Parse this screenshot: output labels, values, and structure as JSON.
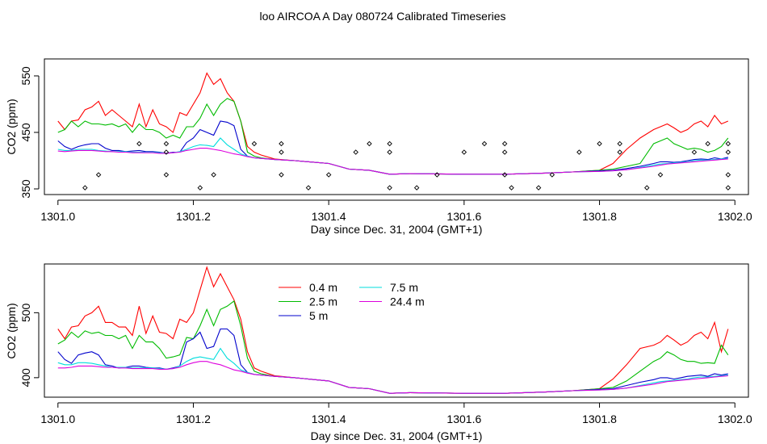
{
  "title": "loo AIRCOA A  Day 080724  Calibrated Timeseries",
  "chart_data": [
    {
      "type": "line",
      "xlabel": "Day since Dec. 31, 2004 (GMT+1)",
      "ylabel": "CO2 (ppm)",
      "xlim": [
        1300.98,
        1302.02
      ],
      "ylim": [
        340,
        580
      ],
      "xticks": [
        1301.0,
        1301.2,
        1301.4,
        1301.6,
        1301.8,
        1302.0
      ],
      "xtick_labels": [
        "1301.0",
        "1301.2",
        "1301.4",
        "1301.6",
        "1301.8",
        "1302.0"
      ],
      "yticks": [
        350,
        450,
        550
      ],
      "ytick_labels": [
        "350",
        "450",
        "550"
      ],
      "grid": false,
      "legend": "none",
      "x": [
        1301.0,
        1301.01,
        1301.02,
        1301.03,
        1301.04,
        1301.05,
        1301.06,
        1301.07,
        1301.08,
        1301.09,
        1301.1,
        1301.11,
        1301.12,
        1301.13,
        1301.14,
        1301.15,
        1301.16,
        1301.17,
        1301.18,
        1301.19,
        1301.2,
        1301.21,
        1301.22,
        1301.23,
        1301.24,
        1301.25,
        1301.26,
        1301.27,
        1301.28,
        1301.29,
        1301.3,
        1301.32,
        1301.35,
        1301.4,
        1301.43,
        1301.46,
        1301.49,
        1301.52,
        1301.6,
        1301.66,
        1301.72,
        1301.76,
        1301.8,
        1301.82,
        1301.84,
        1301.86,
        1301.88,
        1301.89,
        1301.9,
        1301.91,
        1301.92,
        1301.93,
        1301.94,
        1301.95,
        1301.96,
        1301.97,
        1301.98,
        1301.99
      ],
      "series": [
        {
          "name": "0.4 m",
          "color": "#ff0000",
          "values": [
            470,
            455,
            470,
            472,
            490,
            495,
            505,
            480,
            490,
            480,
            470,
            460,
            500,
            460,
            490,
            465,
            460,
            450,
            485,
            480,
            500,
            520,
            555,
            535,
            545,
            520,
            505,
            470,
            425,
            415,
            410,
            403,
            400,
            395,
            385,
            383,
            376,
            377,
            376,
            376,
            378,
            380,
            383,
            395,
            420,
            440,
            455,
            460,
            465,
            458,
            450,
            455,
            465,
            470,
            460,
            480,
            465,
            470
          ]
        },
        {
          "name": "2.5 m",
          "color": "#00bb00",
          "values": [
            450,
            455,
            470,
            460,
            470,
            465,
            465,
            463,
            465,
            460,
            465,
            450,
            465,
            455,
            455,
            450,
            440,
            445,
            440,
            460,
            460,
            475,
            500,
            480,
            500,
            510,
            505,
            470,
            415,
            408,
            405,
            402,
            400,
            395,
            385,
            383,
            376,
            377,
            376,
            376,
            378,
            380,
            383,
            385,
            390,
            395,
            430,
            435,
            440,
            430,
            425,
            420,
            422,
            420,
            415,
            418,
            425,
            440
          ]
        },
        {
          "name": "5 m",
          "color": "#0000cc",
          "values": [
            435,
            425,
            420,
            425,
            428,
            430,
            430,
            422,
            418,
            418,
            416,
            417,
            418,
            416,
            416,
            415,
            413,
            415,
            415,
            432,
            440,
            455,
            450,
            445,
            470,
            468,
            462,
            420,
            408,
            405,
            404,
            402,
            400,
            395,
            385,
            383,
            376,
            377,
            376,
            376,
            378,
            380,
            382,
            383,
            386,
            390,
            395,
            398,
            398,
            397,
            398,
            400,
            402,
            403,
            402,
            405,
            403,
            406
          ]
        },
        {
          "name": "7.5 m",
          "color": "#00dddd",
          "values": [
            420,
            418,
            418,
            420,
            420,
            420,
            418,
            417,
            416,
            416,
            416,
            415,
            415,
            415,
            415,
            414,
            413,
            414,
            416,
            420,
            425,
            428,
            427,
            425,
            440,
            428,
            420,
            412,
            408,
            405,
            404,
            402,
            400,
            395,
            385,
            383,
            376,
            377,
            376,
            376,
            378,
            380,
            381,
            382,
            384,
            388,
            392,
            394,
            395,
            396,
            397,
            398,
            400,
            401,
            401,
            402,
            403,
            404
          ]
        },
        {
          "name": "24.4 m",
          "color": "#dd00dd",
          "values": [
            417,
            416,
            417,
            418,
            418,
            418,
            417,
            416,
            416,
            415,
            415,
            414,
            414,
            414,
            414,
            413,
            413,
            414,
            415,
            418,
            420,
            422,
            422,
            420,
            418,
            415,
            412,
            410,
            407,
            405,
            404,
            402,
            400,
            395,
            385,
            383,
            376,
            377,
            376,
            376,
            378,
            380,
            381,
            382,
            384,
            387,
            390,
            392,
            394,
            395,
            396,
            397,
            398,
            399,
            400,
            401,
            402,
            403
          ]
        }
      ],
      "markers": {
        "symbol": "diamond",
        "x": [
          1301.04,
          1301.06,
          1301.12,
          1301.16,
          1301.16,
          1301.16,
          1301.21,
          1301.23,
          1301.29,
          1301.33,
          1301.33,
          1301.33,
          1301.37,
          1301.4,
          1301.44,
          1301.46,
          1301.49,
          1301.49,
          1301.49,
          1301.53,
          1301.56,
          1301.6,
          1301.63,
          1301.66,
          1301.66,
          1301.66,
          1301.67,
          1301.71,
          1301.73,
          1301.77,
          1301.8,
          1301.83,
          1301.83,
          1301.83,
          1301.87,
          1301.89,
          1301.94,
          1301.96,
          1301.99,
          1301.99,
          1301.99,
          1301.99
        ],
        "y": [
          352,
          375,
          430,
          375,
          415,
          430,
          352,
          375,
          430,
          375,
          415,
          430,
          352,
          375,
          415,
          430,
          352,
          415,
          430,
          352,
          375,
          415,
          430,
          375,
          415,
          430,
          352,
          352,
          375,
          415,
          430,
          375,
          415,
          430,
          352,
          375,
          415,
          430,
          375,
          352,
          415,
          430
        ]
      }
    },
    {
      "type": "line",
      "xlabel": "Day since Dec. 31, 2004 (GMT+1)",
      "ylabel": "CO2 (ppm)",
      "xlim": [
        1300.98,
        1302.02
      ],
      "ylim": [
        370,
        575
      ],
      "xticks": [
        1301.0,
        1301.2,
        1301.4,
        1301.6,
        1301.8,
        1302.0
      ],
      "xtick_labels": [
        "1301.0",
        "1301.2",
        "1301.4",
        "1301.6",
        "1301.8",
        "1302.0"
      ],
      "yticks": [
        400,
        500
      ],
      "ytick_labels": [
        "400",
        "500"
      ],
      "grid": false,
      "legend": "top-center",
      "legend_entries": [
        {
          "label": "0.4 m",
          "color": "#ff0000"
        },
        {
          "label": "2.5 m",
          "color": "#00bb00"
        },
        {
          "label": "5 m",
          "color": "#0000cc"
        },
        {
          "label": "7.5 m",
          "color": "#00dddd"
        },
        {
          "label": "24.4 m",
          "color": "#dd00dd"
        }
      ],
      "x": [
        1301.0,
        1301.01,
        1301.02,
        1301.03,
        1301.04,
        1301.05,
        1301.06,
        1301.07,
        1301.08,
        1301.09,
        1301.1,
        1301.11,
        1301.12,
        1301.13,
        1301.14,
        1301.15,
        1301.16,
        1301.17,
        1301.18,
        1301.19,
        1301.2,
        1301.21,
        1301.22,
        1301.23,
        1301.24,
        1301.25,
        1301.26,
        1301.27,
        1301.28,
        1301.29,
        1301.3,
        1301.32,
        1301.35,
        1301.4,
        1301.43,
        1301.46,
        1301.49,
        1301.52,
        1301.6,
        1301.66,
        1301.72,
        1301.76,
        1301.8,
        1301.82,
        1301.84,
        1301.86,
        1301.88,
        1301.89,
        1301.9,
        1301.91,
        1301.92,
        1301.93,
        1301.94,
        1301.95,
        1301.96,
        1301.97,
        1301.98,
        1301.99
      ],
      "series": [
        {
          "name": "0.4 m",
          "color": "#ff0000",
          "values": [
            475,
            460,
            478,
            480,
            495,
            500,
            510,
            485,
            485,
            478,
            478,
            465,
            510,
            468,
            495,
            470,
            468,
            460,
            490,
            485,
            500,
            535,
            570,
            540,
            560,
            540,
            520,
            490,
            440,
            415,
            410,
            403,
            400,
            395,
            385,
            383,
            376,
            377,
            376,
            376,
            378,
            380,
            383,
            398,
            420,
            445,
            450,
            455,
            465,
            458,
            450,
            455,
            465,
            470,
            460,
            485,
            440,
            475
          ]
        },
        {
          "name": "2.5 m",
          "color": "#00bb00",
          "values": [
            452,
            458,
            470,
            462,
            472,
            468,
            470,
            465,
            465,
            460,
            465,
            445,
            465,
            455,
            455,
            445,
            430,
            432,
            435,
            462,
            460,
            480,
            505,
            480,
            505,
            510,
            518,
            480,
            430,
            410,
            406,
            402,
            400,
            395,
            385,
            383,
            376,
            377,
            376,
            376,
            378,
            380,
            383,
            385,
            395,
            410,
            425,
            430,
            440,
            435,
            428,
            425,
            425,
            422,
            423,
            422,
            450,
            435
          ]
        },
        {
          "name": "5 m",
          "color": "#0000cc",
          "values": [
            440,
            428,
            422,
            435,
            438,
            440,
            435,
            420,
            418,
            415,
            416,
            418,
            418,
            416,
            415,
            415,
            413,
            415,
            418,
            455,
            460,
            470,
            445,
            448,
            475,
            475,
            465,
            420,
            408,
            405,
            404,
            402,
            400,
            395,
            385,
            383,
            376,
            377,
            376,
            376,
            378,
            380,
            382,
            383,
            388,
            393,
            397,
            400,
            400,
            398,
            400,
            402,
            403,
            404,
            402,
            406,
            404,
            406
          ]
        },
        {
          "name": "7.5 m",
          "color": "#00dddd",
          "values": [
            423,
            420,
            420,
            423,
            423,
            422,
            420,
            418,
            416,
            416,
            416,
            415,
            415,
            415,
            415,
            414,
            413,
            414,
            418,
            425,
            430,
            432,
            430,
            428,
            445,
            430,
            422,
            412,
            408,
            405,
            404,
            402,
            400,
            395,
            385,
            383,
            376,
            377,
            376,
            376,
            378,
            380,
            381,
            382,
            384,
            388,
            392,
            394,
            395,
            396,
            397,
            398,
            400,
            401,
            401,
            402,
            403,
            404
          ]
        },
        {
          "name": "24.4 m",
          "color": "#dd00dd",
          "values": [
            415,
            415,
            416,
            418,
            418,
            418,
            417,
            416,
            416,
            415,
            415,
            414,
            414,
            414,
            414,
            413,
            413,
            414,
            416,
            420,
            423,
            425,
            425,
            422,
            420,
            416,
            412,
            410,
            407,
            405,
            404,
            402,
            400,
            395,
            385,
            383,
            376,
            377,
            376,
            376,
            378,
            380,
            381,
            382,
            384,
            387,
            390,
            392,
            394,
            395,
            396,
            397,
            398,
            399,
            400,
            401,
            402,
            403
          ]
        }
      ]
    }
  ]
}
